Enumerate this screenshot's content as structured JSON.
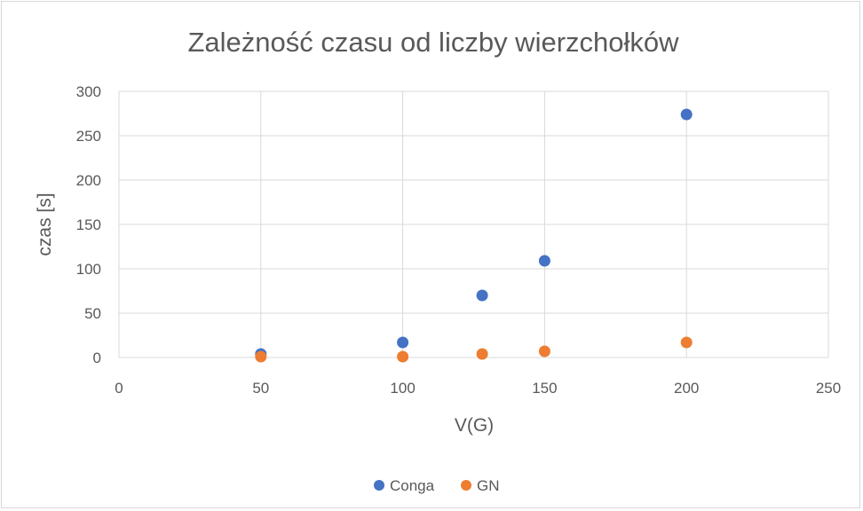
{
  "chart_data": {
    "type": "scatter",
    "title": "Zależność czasu od liczby wierzchołków",
    "xlabel": "V(G)",
    "ylabel": "czas [s]",
    "xlim": [
      0,
      250
    ],
    "ylim": [
      0,
      300
    ],
    "x_ticks": [
      0,
      50,
      100,
      150,
      200,
      250
    ],
    "y_ticks": [
      0,
      50,
      100,
      150,
      200,
      250,
      300
    ],
    "grid": true,
    "legend_position": "bottom",
    "series": [
      {
        "name": "Conga",
        "color": "#4472C4",
        "points": [
          {
            "x": 50,
            "y": 4
          },
          {
            "x": 100,
            "y": 17
          },
          {
            "x": 128,
            "y": 70
          },
          {
            "x": 150,
            "y": 109
          },
          {
            "x": 200,
            "y": 274
          }
        ]
      },
      {
        "name": "GN",
        "color": "#ED7D31",
        "points": [
          {
            "x": 50,
            "y": 1
          },
          {
            "x": 100,
            "y": 1
          },
          {
            "x": 128,
            "y": 4
          },
          {
            "x": 150,
            "y": 7
          },
          {
            "x": 200,
            "y": 17
          }
        ]
      }
    ]
  }
}
